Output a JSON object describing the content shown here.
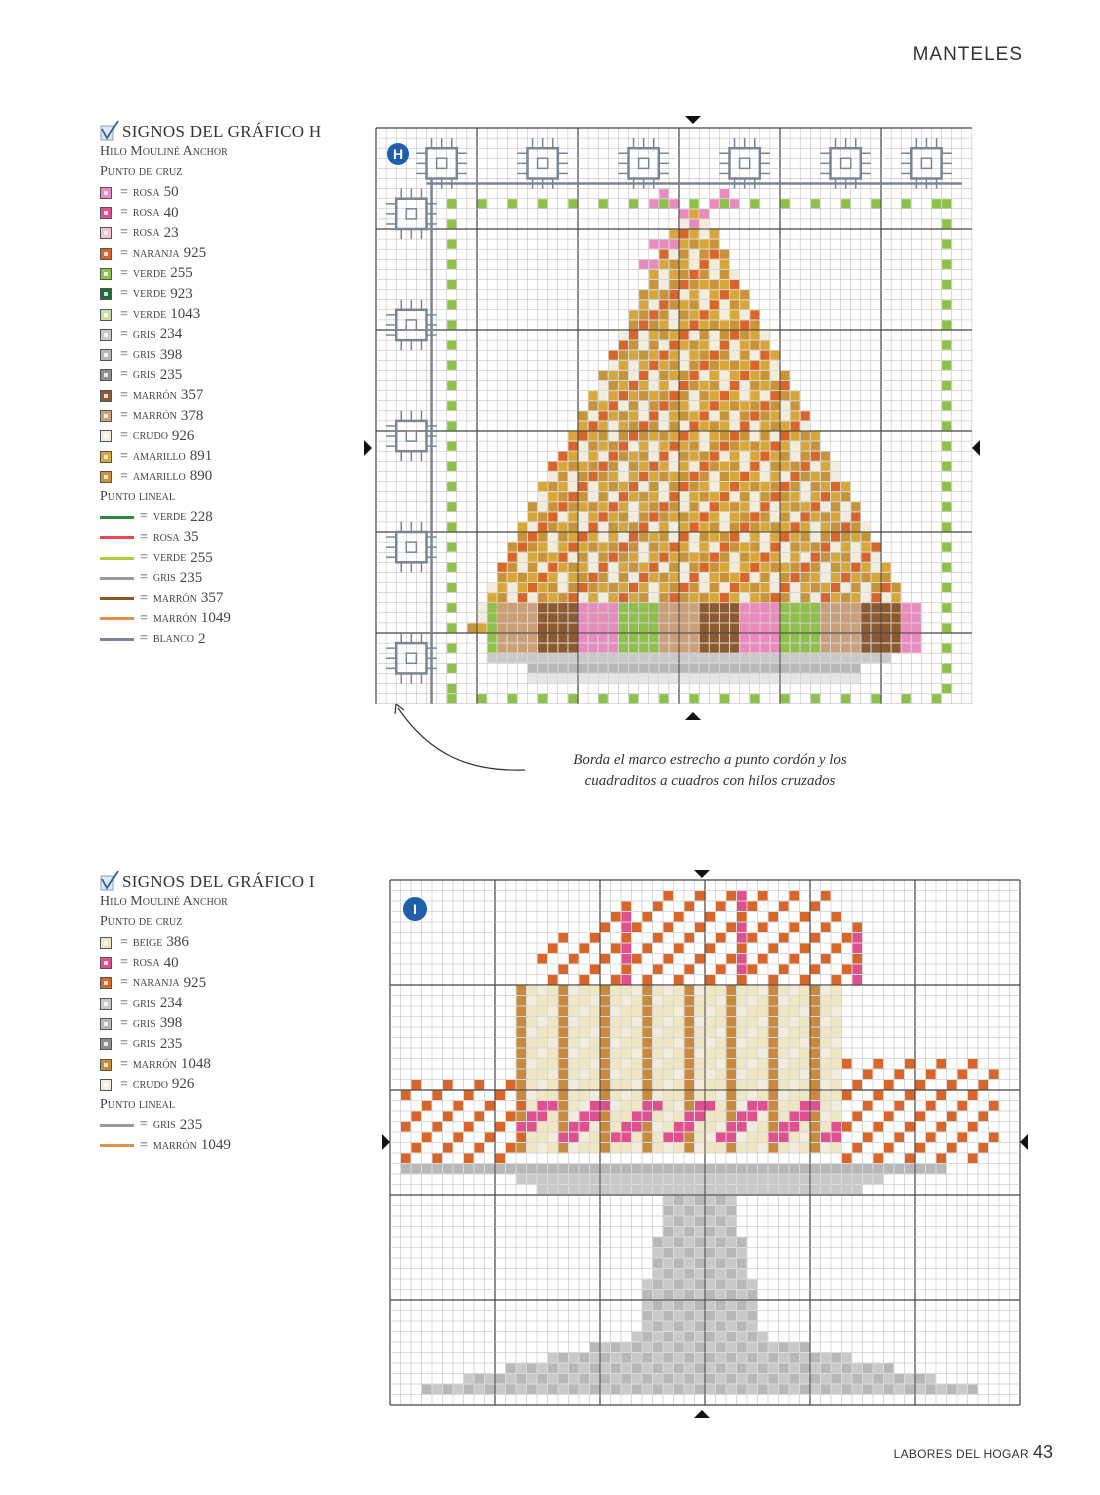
{
  "header": {
    "section": "MANTELES"
  },
  "legend_h": {
    "title": "SIGNOS DEL GRÁFICO H",
    "thread": "Hilo Mouliné Anchor",
    "cross_label": "Punto de cruz",
    "cross": [
      {
        "name": "rosa",
        "code": "50",
        "color": "#e88cc0"
      },
      {
        "name": "rosa",
        "code": "40",
        "color": "#e0508f"
      },
      {
        "name": "rosa",
        "code": "23",
        "color": "#f2c2d4"
      },
      {
        "name": "naranja",
        "code": "925",
        "color": "#d8652a"
      },
      {
        "name": "verde",
        "code": "255",
        "color": "#8ec14a"
      },
      {
        "name": "verde",
        "code": "923",
        "color": "#1d6b38"
      },
      {
        "name": "verde",
        "code": "1043",
        "color": "#c7e0a8"
      },
      {
        "name": "gris",
        "code": "234",
        "color": "#c9c9c9"
      },
      {
        "name": "gris",
        "code": "398",
        "color": "#b8b8b8"
      },
      {
        "name": "gris",
        "code": "235",
        "color": "#8f8f8f"
      },
      {
        "name": "marrón",
        "code": "357",
        "color": "#8a5a32"
      },
      {
        "name": "marrón",
        "code": "378",
        "color": "#c9a07a"
      },
      {
        "name": "crudo",
        "code": "926",
        "color": "#f1ecdc"
      },
      {
        "name": "amarillo",
        "code": "891",
        "color": "#d7a73a"
      },
      {
        "name": "amarillo",
        "code": "890",
        "color": "#c8943a"
      }
    ],
    "line_label": "Punto lineal",
    "lines": [
      {
        "name": "verde",
        "code": "228",
        "color": "#2e8b3e"
      },
      {
        "name": "rosa",
        "code": "35",
        "color": "#e8484f"
      },
      {
        "name": "verde",
        "code": "255",
        "color": "#a9cf3c"
      },
      {
        "name": "gris",
        "code": "235",
        "color": "#9a9a9a"
      },
      {
        "name": "marrón",
        "code": "357",
        "color": "#8a5a22"
      },
      {
        "name": "marrón",
        "code": "1049",
        "color": "#e0904a"
      },
      {
        "name": "blanco",
        "code": "2",
        "color": "#7a8594"
      }
    ]
  },
  "legend_i": {
    "title": "SIGNOS DEL GRÁFICO I",
    "thread": "Hilo Mouliné Anchor",
    "cross_label": "Punto de cruz",
    "cross": [
      {
        "name": "beige",
        "code": "386",
        "color": "#efe6c4"
      },
      {
        "name": "rosa",
        "code": "40",
        "color": "#e0508f"
      },
      {
        "name": "naranja",
        "code": "925",
        "color": "#d8652a"
      },
      {
        "name": "gris",
        "code": "234",
        "color": "#c9c9c9"
      },
      {
        "name": "gris",
        "code": "398",
        "color": "#b8b8b8"
      },
      {
        "name": "gris",
        "code": "235",
        "color": "#8f8f8f"
      },
      {
        "name": "marrón",
        "code": "1048",
        "color": "#c98a3e"
      },
      {
        "name": "crudo",
        "code": "926",
        "color": "#f1ecdc"
      }
    ],
    "line_label": "Punto lineal",
    "lines": [
      {
        "name": "gris",
        "code": "235",
        "color": "#9a9a9a"
      },
      {
        "name": "marrón",
        "code": "1049",
        "color": "#e0904a"
      }
    ]
  },
  "chart_h": {
    "badge": "H"
  },
  "chart_i": {
    "badge": "I"
  },
  "caption": {
    "line1": "Borda el marco estrecho a punto cordón y los",
    "line2": "cuadraditos a cuadros con hilos cruzados"
  },
  "footer": {
    "brand": "LABORES DEL HOGAR",
    "page": "43"
  }
}
